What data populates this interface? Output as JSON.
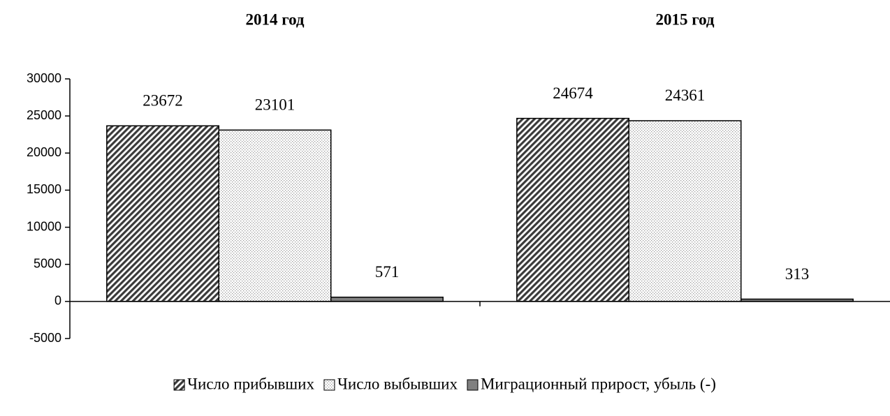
{
  "chart_data": {
    "type": "bar",
    "categories": [
      "2014 год",
      "2015 год"
    ],
    "series": [
      {
        "name": "Число прибывших",
        "color": "#3a3a3a",
        "pattern": "diagonal",
        "values": [
          23672,
          24674
        ]
      },
      {
        "name": "Число выбывших",
        "color": "#9a9a9a",
        "pattern": "dots",
        "values": [
          23101,
          24361
        ]
      },
      {
        "name": "Миграционный прирост, убыль (-)",
        "color": "#808080",
        "pattern": "solid",
        "values": [
          571,
          313
        ]
      }
    ],
    "ylim": [
      -5000,
      30000
    ],
    "yticks": [
      -5000,
      0,
      5000,
      10000,
      15000,
      20000,
      25000,
      30000
    ],
    "grid": false,
    "legend": "bottom"
  }
}
